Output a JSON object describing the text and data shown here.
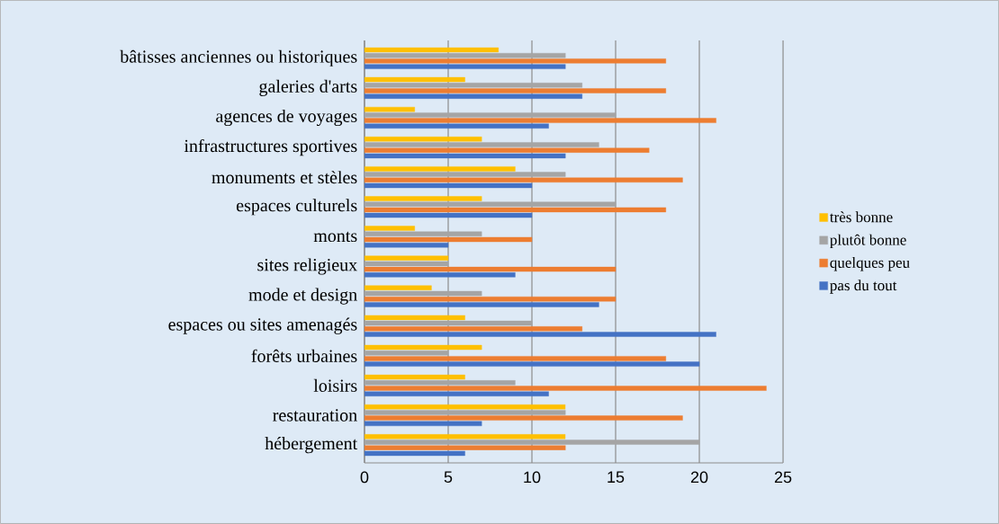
{
  "chart_data": {
    "type": "bar",
    "orientation": "horizontal",
    "categories": [
      "bâtisses anciennes ou historiques",
      "galeries d'arts",
      "agences de voyages",
      "infrastructures sportives",
      "monuments et stèles",
      "espaces culturels",
      "monts",
      "sites religieux",
      "mode et design",
      "espaces ou sites amenagés",
      "forêts urbaines",
      "loisirs",
      "restauration",
      "hébergement"
    ],
    "series": [
      {
        "name": "très bonne",
        "color": "#ffc000",
        "values": [
          8,
          6,
          3,
          7,
          9,
          7,
          3,
          5,
          4,
          6,
          7,
          6,
          12,
          12
        ]
      },
      {
        "name": "plutôt bonne",
        "color": "#a5a5a5",
        "values": [
          12,
          13,
          15,
          14,
          12,
          15,
          7,
          5,
          7,
          10,
          5,
          9,
          12,
          20
        ]
      },
      {
        "name": "quelques peu",
        "color": "#ed7d31",
        "values": [
          18,
          18,
          21,
          17,
          19,
          18,
          10,
          15,
          15,
          13,
          18,
          24,
          19,
          12
        ]
      },
      {
        "name": "pas du tout",
        "color": "#4472c4",
        "values": [
          12,
          13,
          11,
          12,
          10,
          10,
          5,
          9,
          14,
          21,
          20,
          11,
          7,
          6
        ]
      }
    ],
    "xlim": [
      0,
      25
    ],
    "xticks": [
      0,
      5,
      10,
      15,
      20,
      25
    ],
    "grid": "x",
    "legend": "right"
  }
}
